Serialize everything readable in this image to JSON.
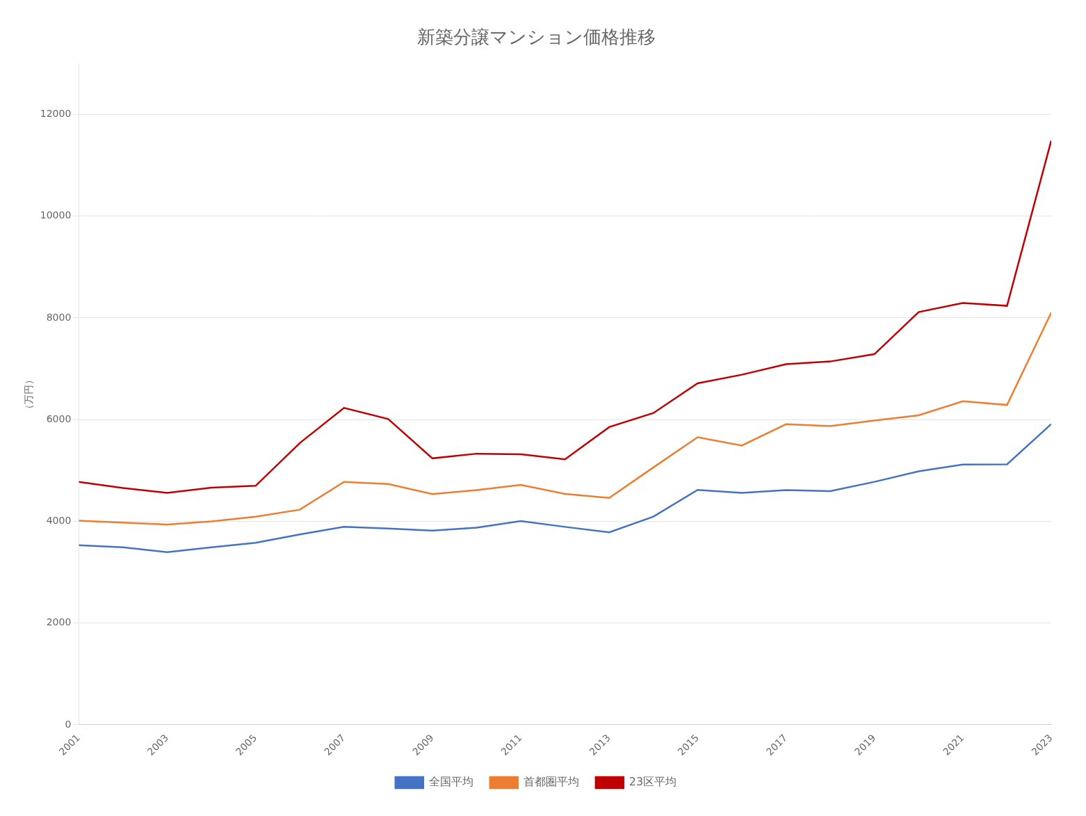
{
  "chart_data": {
    "type": "line",
    "title": "新築分譲マンション価格推移",
    "ylabel": "（万円）",
    "x": [
      2001,
      2002,
      2003,
      2004,
      2005,
      2006,
      2007,
      2008,
      2009,
      2010,
      2011,
      2012,
      2013,
      2014,
      2015,
      2016,
      2017,
      2018,
      2019,
      2020,
      2021,
      2022,
      2023
    ],
    "series": [
      {
        "name": "全国平均",
        "color": "#4472C4",
        "values": [
          3529,
          3490,
          3395,
          3488,
          3578,
          3743,
          3891,
          3860,
          3816,
          3874,
          4006,
          3891,
          3784,
          4093,
          4618,
          4560,
          4614,
          4595,
          4776,
          4984,
          5115,
          5121,
          5911
        ]
      },
      {
        "name": "首都圏平均",
        "color": "#ED7D31",
        "values": [
          4013,
          3974,
          3938,
          3997,
          4091,
          4229,
          4776,
          4734,
          4536,
          4613,
          4717,
          4540,
          4459,
          5060,
          5652,
          5490,
          5908,
          5871,
          5980,
          6083,
          6360,
          6288,
          8101
        ]
      },
      {
        "name": "23区平均",
        "color": "#C00000",
        "values": [
          4776,
          4654,
          4559,
          4663,
          4698,
          5539,
          6230,
          6010,
          5238,
          5330,
          5318,
          5218,
          5853,
          6129,
          6714,
          6882,
          7089,
          7142,
          7286,
          8114,
          8293,
          8236,
          11483
        ]
      }
    ],
    "xlim": [
      2001,
      2023
    ],
    "xticks": [
      2001,
      2003,
      2005,
      2007,
      2009,
      2011,
      2013,
      2015,
      2017,
      2019,
      2021,
      2023
    ],
    "ylim": [
      0,
      13000
    ],
    "yticks": [
      0,
      2000,
      4000,
      6000,
      8000,
      10000,
      12000
    ],
    "grid": true,
    "legend": "bottom"
  }
}
